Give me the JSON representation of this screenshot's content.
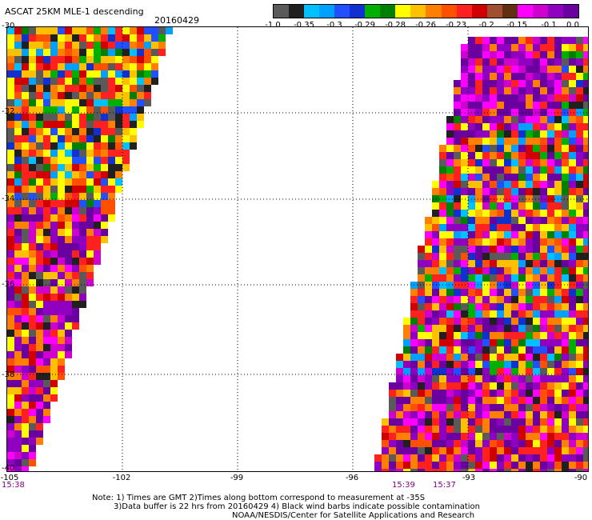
{
  "header": {
    "title": "ASCAT 25KM MLE-1 descending",
    "date": "20160429"
  },
  "colorbar": {
    "colors": [
      "#5a5a5a",
      "#202020",
      "#00c0ff",
      "#00a0ff",
      "#2050ff",
      "#1030d0",
      "#00b000",
      "#008000",
      "#ffff00",
      "#ffc000",
      "#ff8000",
      "#ff5000",
      "#ff2020",
      "#d00000",
      "#a05030",
      "#603010",
      "#ff00ff",
      "#d000d0",
      "#9000c0",
      "#6a00a0"
    ],
    "tick_labels": [
      "-1.0",
      "-0.35",
      "-0.3",
      "-0.29",
      "-0.28",
      "-0.26",
      "-0.23",
      "-0.2",
      "-0.15",
      "-0.1",
      "0.0"
    ]
  },
  "axes": {
    "y_labels": [
      "-30",
      "-32",
      "-34",
      "-36",
      "-38",
      "-40"
    ],
    "x_labels": [
      "-105",
      "-102",
      "-99",
      "-96",
      "-93",
      "-90"
    ],
    "grid": "dotted"
  },
  "swath_times": {
    "left": "15:38",
    "right_a": "15:39",
    "right_b": "15:37"
  },
  "notes": {
    "line1": "Note: 1) Times are GMT 2)Times along bottom correspond to measurement at -35S",
    "line2": "3)Data buffer is 22 hrs from 20160429 4) Black wind barbs indicate possible contamination",
    "line3": "NOAA/NESDIS/Center for Satellite Applications and Research"
  }
}
